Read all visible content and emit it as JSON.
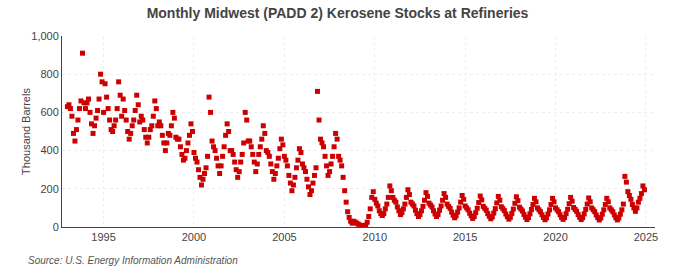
{
  "chart_data": {
    "type": "scatter",
    "title": "Monthly Midwest (PADD 2) Kerosene Stocks at Refineries",
    "ylabel": "Thousand Barrels",
    "annotations": [
      "Source: U.S. Energy Information Administration"
    ],
    "color": "#cc0000",
    "marker": "square",
    "grid": true,
    "xlim": [
      1992.7,
      2025.5
    ],
    "ylim": [
      0,
      1000
    ],
    "xticks": [
      1995,
      2000,
      2005,
      2010,
      2015,
      2020,
      2025
    ],
    "yticks": [
      0,
      200,
      400,
      600,
      800,
      {
        "value": 1000,
        "label": "1,000"
      }
    ],
    "x": [
      1993.0,
      1993.083,
      1993.167,
      1993.25,
      1993.333,
      1993.417,
      1993.5,
      1993.583,
      1993.667,
      1993.75,
      1993.833,
      1993.917,
      1994.0,
      1994.083,
      1994.167,
      1994.25,
      1994.333,
      1994.417,
      1994.5,
      1994.583,
      1994.667,
      1994.75,
      1994.833,
      1994.917,
      1995.0,
      1995.083,
      1995.167,
      1995.25,
      1995.333,
      1995.417,
      1995.5,
      1995.583,
      1995.667,
      1995.75,
      1995.833,
      1995.917,
      1996.0,
      1996.083,
      1996.167,
      1996.25,
      1996.333,
      1996.417,
      1996.5,
      1996.583,
      1996.667,
      1996.75,
      1996.833,
      1996.917,
      1997.0,
      1997.083,
      1997.167,
      1997.25,
      1997.333,
      1997.417,
      1997.5,
      1997.583,
      1997.667,
      1997.75,
      1997.833,
      1997.917,
      1998.0,
      1998.083,
      1998.167,
      1998.25,
      1998.333,
      1998.417,
      1998.5,
      1998.583,
      1998.667,
      1998.75,
      1998.833,
      1998.917,
      1999.0,
      1999.083,
      1999.167,
      1999.25,
      1999.333,
      1999.417,
      1999.5,
      1999.583,
      1999.667,
      1999.75,
      1999.833,
      1999.917,
      2000.0,
      2000.083,
      2000.167,
      2000.25,
      2000.333,
      2000.417,
      2000.5,
      2000.583,
      2000.667,
      2000.75,
      2000.833,
      2000.917,
      2001.0,
      2001.083,
      2001.167,
      2001.25,
      2001.333,
      2001.417,
      2001.5,
      2001.583,
      2001.667,
      2001.75,
      2001.833,
      2001.917,
      2002.0,
      2002.083,
      2002.167,
      2002.25,
      2002.333,
      2002.417,
      2002.5,
      2002.583,
      2002.667,
      2002.75,
      2002.833,
      2002.917,
      2003.0,
      2003.083,
      2003.167,
      2003.25,
      2003.333,
      2003.417,
      2003.5,
      2003.583,
      2003.667,
      2003.75,
      2003.833,
      2003.917,
      2004.0,
      2004.083,
      2004.167,
      2004.25,
      2004.333,
      2004.417,
      2004.5,
      2004.583,
      2004.667,
      2004.75,
      2004.833,
      2004.917,
      2005.0,
      2005.083,
      2005.167,
      2005.25,
      2005.333,
      2005.417,
      2005.5,
      2005.583,
      2005.667,
      2005.75,
      2005.833,
      2005.917,
      2006.0,
      2006.083,
      2006.167,
      2006.25,
      2006.333,
      2006.417,
      2006.5,
      2006.583,
      2006.667,
      2006.75,
      2006.833,
      2006.917,
      2007.0,
      2007.083,
      2007.167,
      2007.25,
      2007.333,
      2007.417,
      2007.5,
      2007.583,
      2007.667,
      2007.75,
      2007.833,
      2007.917,
      2008.0,
      2008.083,
      2008.167,
      2008.25,
      2008.333,
      2008.417,
      2008.5,
      2008.583,
      2008.667,
      2008.75,
      2008.833,
      2008.917,
      2009.0,
      2009.083,
      2009.167,
      2009.25,
      2009.333,
      2009.417,
      2009.5,
      2009.583,
      2009.667,
      2009.75,
      2009.833,
      2009.917,
      2010.0,
      2010.083,
      2010.167,
      2010.25,
      2010.333,
      2010.417,
      2010.5,
      2010.583,
      2010.667,
      2010.75,
      2010.833,
      2010.917,
      2011.0,
      2011.083,
      2011.167,
      2011.25,
      2011.333,
      2011.417,
      2011.5,
      2011.583,
      2011.667,
      2011.75,
      2011.833,
      2011.917,
      2012.0,
      2012.083,
      2012.167,
      2012.25,
      2012.333,
      2012.417,
      2012.5,
      2012.583,
      2012.667,
      2012.75,
      2012.833,
      2012.917,
      2013.0,
      2013.083,
      2013.167,
      2013.25,
      2013.333,
      2013.417,
      2013.5,
      2013.583,
      2013.667,
      2013.75,
      2013.833,
      2013.917,
      2014.0,
      2014.083,
      2014.167,
      2014.25,
      2014.333,
      2014.417,
      2014.5,
      2014.583,
      2014.667,
      2014.75,
      2014.833,
      2014.917,
      2015.0,
      2015.083,
      2015.167,
      2015.25,
      2015.333,
      2015.417,
      2015.5,
      2015.583,
      2015.667,
      2015.75,
      2015.833,
      2015.917,
      2016.0,
      2016.083,
      2016.167,
      2016.25,
      2016.333,
      2016.417,
      2016.5,
      2016.583,
      2016.667,
      2016.75,
      2016.833,
      2016.917,
      2017.0,
      2017.083,
      2017.167,
      2017.25,
      2017.333,
      2017.417,
      2017.5,
      2017.583,
      2017.667,
      2017.75,
      2017.833,
      2017.917,
      2018.0,
      2018.083,
      2018.167,
      2018.25,
      2018.333,
      2018.417,
      2018.5,
      2018.583,
      2018.667,
      2018.75,
      2018.833,
      2018.917,
      2019.0,
      2019.083,
      2019.167,
      2019.25,
      2019.333,
      2019.417,
      2019.5,
      2019.583,
      2019.667,
      2019.75,
      2019.833,
      2019.917,
      2020.0,
      2020.083,
      2020.167,
      2020.25,
      2020.333,
      2020.417,
      2020.5,
      2020.583,
      2020.667,
      2020.75,
      2020.833,
      2020.917,
      2021.0,
      2021.083,
      2021.167,
      2021.25,
      2021.333,
      2021.417,
      2021.5,
      2021.583,
      2021.667,
      2021.75,
      2021.833,
      2021.917,
      2022.0,
      2022.083,
      2022.167,
      2022.25,
      2022.333,
      2022.417,
      2022.5,
      2022.583,
      2022.667,
      2022.75,
      2022.833,
      2022.917,
      2023.0,
      2023.083,
      2023.167,
      2023.25,
      2023.333,
      2023.417,
      2023.5,
      2023.583,
      2023.667,
      2023.75,
      2023.833,
      2023.917,
      2024.0,
      2024.083,
      2024.167,
      2024.25,
      2024.333,
      2024.417,
      2024.5,
      2024.583,
      2024.667,
      2024.75,
      2024.833,
      2024.917
    ],
    "values": [
      630,
      640,
      620,
      580,
      490,
      450,
      510,
      560,
      620,
      660,
      910,
      650,
      620,
      650,
      670,
      600,
      540,
      490,
      530,
      570,
      610,
      670,
      800,
      760,
      600,
      750,
      680,
      620,
      560,
      510,
      500,
      530,
      560,
      620,
      760,
      690,
      580,
      670,
      610,
      560,
      500,
      460,
      490,
      530,
      560,
      610,
      690,
      640,
      550,
      580,
      560,
      510,
      470,
      440,
      470,
      510,
      530,
      580,
      660,
      620,
      530,
      550,
      530,
      480,
      440,
      400,
      440,
      490,
      480,
      530,
      600,
      570,
      470,
      460,
      460,
      420,
      380,
      350,
      360,
      400,
      440,
      480,
      540,
      500,
      390,
      360,
      340,
      300,
      260,
      220,
      250,
      280,
      310,
      370,
      680,
      600,
      450,
      420,
      400,
      360,
      320,
      280,
      320,
      370,
      420,
      480,
      540,
      500,
      400,
      400,
      380,
      340,
      300,
      260,
      290,
      340,
      380,
      440,
      600,
      560,
      450,
      450,
      420,
      380,
      340,
      290,
      330,
      380,
      420,
      460,
      530,
      490,
      400,
      390,
      370,
      330,
      290,
      250,
      280,
      320,
      360,
      410,
      460,
      430,
      370,
      350,
      320,
      270,
      230,
      190,
      220,
      260,
      310,
      350,
      410,
      390,
      330,
      310,
      290,
      250,
      210,
      170,
      190,
      230,
      270,
      310,
      710,
      560,
      460,
      440,
      420,
      370,
      320,
      270,
      290,
      330,
      370,
      420,
      490,
      460,
      370,
      350,
      320,
      260,
      190,
      130,
      80,
      50,
      30,
      20,
      30,
      25,
      20,
      15,
      10,
      8,
      5,
      5,
      10,
      25,
      55,
      95,
      155,
      185,
      145,
      125,
      110,
      85,
      70,
      60,
      70,
      95,
      120,
      155,
      215,
      190,
      155,
      140,
      130,
      105,
      85,
      65,
      75,
      95,
      120,
      155,
      195,
      170,
      130,
      120,
      110,
      88,
      70,
      55,
      65,
      85,
      108,
      140,
      180,
      160,
      125,
      115,
      105,
      85,
      68,
      55,
      65,
      88,
      110,
      140,
      175,
      155,
      120,
      108,
      98,
      78,
      62,
      48,
      58,
      78,
      100,
      130,
      165,
      145,
      110,
      100,
      90,
      72,
      58,
      45,
      55,
      75,
      98,
      128,
      162,
      142,
      108,
      98,
      88,
      70,
      56,
      43,
      53,
      73,
      96,
      126,
      160,
      140,
      106,
      96,
      86,
      68,
      54,
      41,
      51,
      71,
      94,
      124,
      158,
      138,
      104,
      94,
      84,
      66,
      52,
      39,
      49,
      69,
      92,
      118,
      150,
      132,
      100,
      90,
      80,
      64,
      50,
      38,
      48,
      68,
      90,
      118,
      150,
      132,
      100,
      90,
      80,
      64,
      50,
      40,
      50,
      70,
      93,
      122,
      155,
      135,
      102,
      92,
      82,
      65,
      51,
      39,
      49,
      69,
      92,
      120,
      152,
      132,
      100,
      90,
      80,
      63,
      49,
      37,
      47,
      67,
      90,
      118,
      150,
      132,
      100,
      90,
      80,
      63,
      49,
      37,
      47,
      67,
      90,
      120,
      265,
      235,
      185,
      165,
      145,
      118,
      100,
      82,
      100,
      130,
      150,
      175,
      215,
      195
    ]
  }
}
